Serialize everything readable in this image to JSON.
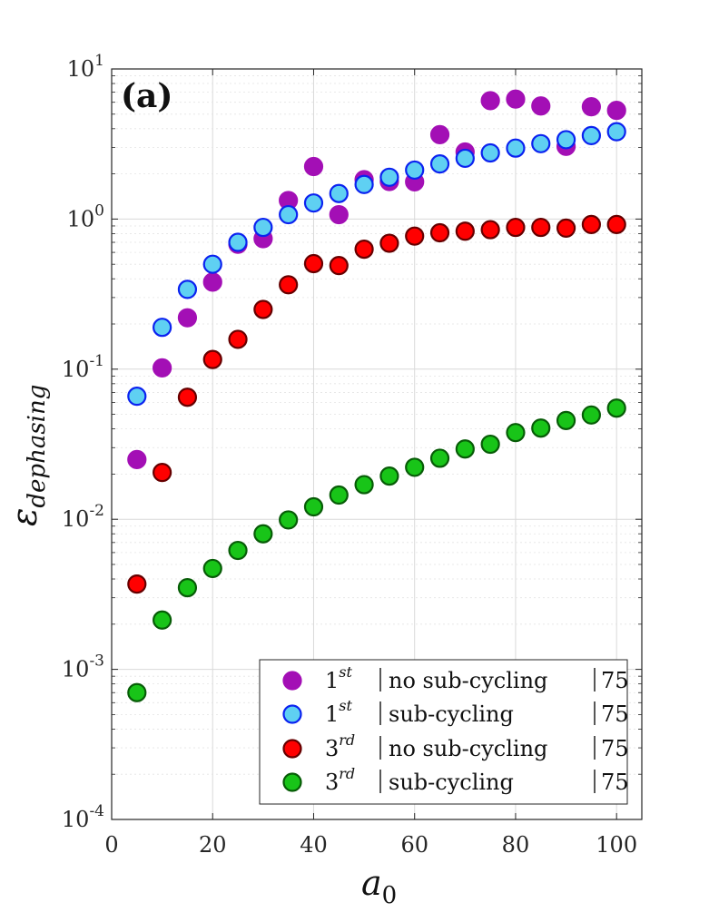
{
  "chart_data": {
    "type": "scatter",
    "panel_label": "(a)",
    "xlabel": "a0",
    "xlabel_base": "a",
    "xlabel_sub": "0",
    "ylabel": "εdephasing",
    "ylabel_base": "ε",
    "ylabel_sub": "dephasing",
    "yscale": "log",
    "xlim": [
      0,
      105
    ],
    "ylim": [
      0.0001,
      10
    ],
    "grid": true,
    "legend_position": "bottom-right",
    "x_ticks": [
      {
        "value": 0,
        "label": "0"
      },
      {
        "value": 20,
        "label": "20"
      },
      {
        "value": 40,
        "label": "40"
      },
      {
        "value": 60,
        "label": "60"
      },
      {
        "value": 80,
        "label": "80"
      },
      {
        "value": 100,
        "label": "100"
      }
    ],
    "y_ticks": [
      {
        "value": 0.0001,
        "base": "10",
        "exp": "-4"
      },
      {
        "value": 0.001,
        "base": "10",
        "exp": "-3"
      },
      {
        "value": 0.01,
        "base": "10",
        "exp": "-2"
      },
      {
        "value": 0.1,
        "base": "10",
        "exp": "-1"
      },
      {
        "value": 1,
        "base": "10",
        "exp": "0"
      },
      {
        "value": 10,
        "base": "10",
        "exp": "1"
      }
    ],
    "series": [
      {
        "name": "1st | no sub-cycling | 75",
        "order": "1",
        "order_sup": "st",
        "scheme": "no sub-cycling",
        "tag": "75",
        "fill": "#a30fb5",
        "edge": "#a30fb5",
        "x": [
          5,
          10,
          15,
          20,
          25,
          30,
          35,
          40,
          45,
          50,
          55,
          60,
          65,
          70,
          75,
          80,
          85,
          90,
          95,
          100
        ],
        "y": [
          0.025,
          0.102,
          0.22,
          0.38,
          0.68,
          0.74,
          1.33,
          2.24,
          1.07,
          1.83,
          1.78,
          1.77,
          3.65,
          2.8,
          6.15,
          6.3,
          5.67,
          3.05,
          5.6,
          5.3
        ]
      },
      {
        "name": "1st | sub-cycling | 75",
        "order": "1",
        "order_sup": "st",
        "scheme": "sub-cycling",
        "tag": "75",
        "fill": "#5fd0f2",
        "edge": "#0b22f0",
        "x": [
          5,
          10,
          15,
          20,
          25,
          30,
          35,
          40,
          45,
          50,
          55,
          60,
          65,
          70,
          75,
          80,
          85,
          90,
          95,
          100
        ],
        "y": [
          0.066,
          0.19,
          0.34,
          0.5,
          0.7,
          0.88,
          1.07,
          1.28,
          1.48,
          1.7,
          1.9,
          2.12,
          2.33,
          2.54,
          2.76,
          2.97,
          3.18,
          3.38,
          3.6,
          3.82
        ]
      },
      {
        "name": "3rd | no sub-cycling | 75",
        "order": "3",
        "order_sup": "rd",
        "scheme": "no sub-cycling",
        "tag": "75",
        "fill": "#ff0000",
        "edge": "#660000",
        "x": [
          5,
          10,
          15,
          20,
          25,
          30,
          35,
          40,
          45,
          50,
          55,
          60,
          65,
          70,
          75,
          80,
          85,
          90,
          95,
          100
        ],
        "y": [
          0.0037,
          0.0205,
          0.065,
          0.116,
          0.158,
          0.25,
          0.365,
          0.505,
          0.49,
          0.63,
          0.69,
          0.77,
          0.81,
          0.83,
          0.85,
          0.88,
          0.88,
          0.87,
          0.92,
          0.92
        ]
      },
      {
        "name": "3rd | sub-cycling | 75",
        "order": "3",
        "order_sup": "rd",
        "scheme": "sub-cycling",
        "tag": "75",
        "fill": "#18c418",
        "edge": "#075c07",
        "x": [
          5,
          10,
          15,
          20,
          25,
          30,
          35,
          40,
          45,
          50,
          55,
          60,
          65,
          70,
          75,
          80,
          85,
          90,
          95,
          100
        ],
        "y": [
          0.0007,
          0.00213,
          0.0035,
          0.0047,
          0.0062,
          0.008,
          0.0099,
          0.0121,
          0.0145,
          0.017,
          0.0194,
          0.0222,
          0.0255,
          0.0294,
          0.0316,
          0.0378,
          0.0405,
          0.0455,
          0.0495,
          0.055
        ]
      }
    ]
  }
}
